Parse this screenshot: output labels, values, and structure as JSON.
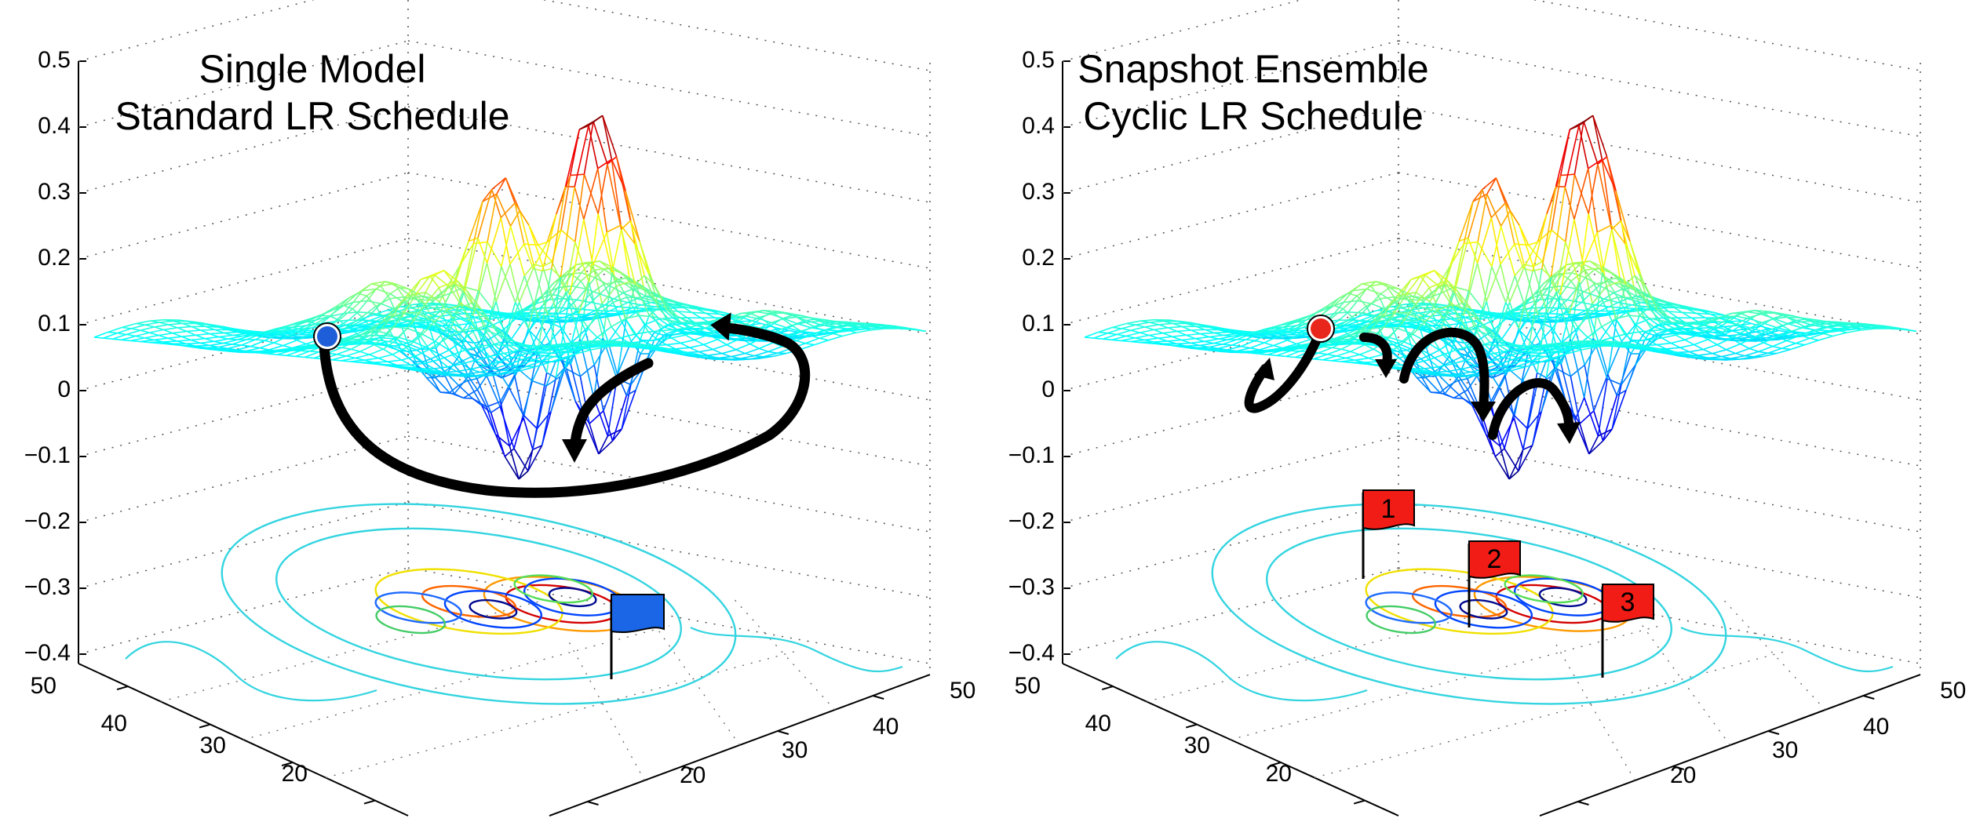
{
  "colors": {
    "trajectory": "#000000",
    "single_start_marker": "#1e5ed8",
    "single_flag": "#1a66e6",
    "snapshot_start_marker": "#e8261b",
    "snapshot_flags": "#f21c16",
    "colormap": "jet"
  },
  "axes": {
    "z_ticks": [
      "0.5",
      "0.4",
      "0.3",
      "0.2",
      "0.1",
      "0",
      "−0.1",
      "−0.2",
      "−0.3",
      "−0.4"
    ],
    "y_ticks": [
      "50",
      "40",
      "30",
      "20"
    ],
    "x_ticks": [
      "20",
      "30",
      "40",
      "50"
    ]
  },
  "panels": {
    "single": {
      "title_line1": "Single Model",
      "title_line2": "Standard LR Schedule",
      "start_marker": "blue-dot",
      "flags": [
        {
          "label": ""
        }
      ]
    },
    "snapshot": {
      "title_line1": "Snapshot Ensemble",
      "title_line2": "Cyclic LR Schedule",
      "start_marker": "red-dot",
      "flags": [
        {
          "label": "1"
        },
        {
          "label": "2"
        },
        {
          "label": "3"
        }
      ]
    }
  }
}
